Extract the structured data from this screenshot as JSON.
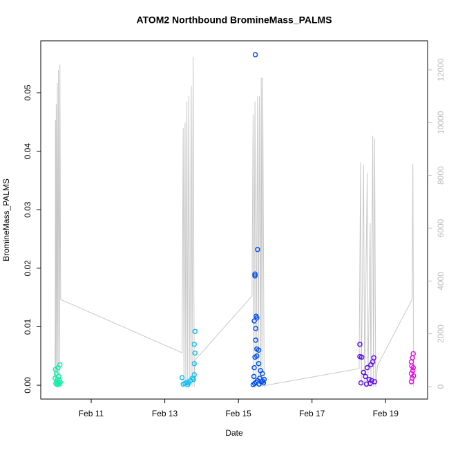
{
  "chart_data": {
    "type": "scatter",
    "title": "ATOM2 Northbound BromineMass_PALMS",
    "x_label": "Date",
    "y_label": "BromineMass_PALMS",
    "xlim": [
      9.63,
      20.14
    ],
    "xticks": [
      {
        "value": 11,
        "label": "Feb 11"
      },
      {
        "value": 13,
        "label": "Feb 13"
      },
      {
        "value": 15,
        "label": "Feb 15"
      },
      {
        "value": 17,
        "label": "Feb 17"
      },
      {
        "value": 19,
        "label": "Feb 19"
      }
    ],
    "ylim": [
      -0.00236,
      0.05887
    ],
    "yticks": [
      {
        "value": 0,
        "label": "0.00"
      },
      0.01,
      0.02,
      0.03,
      0.04,
      0.05
    ],
    "y2lim": [
      -472,
      13100
    ],
    "y2ticks": [
      0,
      2000,
      4000,
      6000,
      8000,
      10000,
      12000
    ],
    "y2_color": "#bbbbbb",
    "series": [
      {
        "type": "line",
        "axis": "y2",
        "color": "#c8c8c8",
        "x": [
          10.02,
          10.03,
          10.04,
          10.05,
          10.07,
          10.08,
          10.1,
          10.11,
          10.14,
          10.15,
          10.17,
          13.47,
          13.5,
          13.52,
          13.55,
          13.57,
          13.6,
          13.62,
          13.65,
          13.68,
          13.72,
          13.74,
          13.77,
          13.8,
          13.82,
          15.37,
          15.4,
          15.42,
          15.45,
          15.48,
          15.52,
          15.54,
          15.57,
          15.6,
          15.62,
          15.64,
          15.66,
          15.7,
          15.75,
          18.28,
          18.32,
          18.34,
          18.4,
          18.43,
          18.5,
          18.52,
          18.58,
          18.6,
          18.65,
          18.67,
          18.7,
          18.73,
          18.78,
          19.72,
          19.74,
          19.76
        ],
        "values": [
          0,
          10100,
          0,
          10700,
          0,
          11500,
          0,
          12000,
          0,
          12200,
          3300,
          1280,
          9800,
          0,
          10000,
          0,
          10800,
          0,
          11000,
          0,
          11400,
          0,
          12500,
          0,
          1000,
          3430,
          10300,
          0,
          10800,
          0,
          11000,
          0,
          11000,
          0,
          11700,
          0,
          11700,
          0,
          50,
          680,
          8500,
          0,
          8400,
          0,
          8100,
          0,
          6200,
          0,
          9500,
          0,
          9400,
          0,
          800,
          3300,
          8450,
          0
        ]
      },
      {
        "color": "#10f0a8",
        "x": [
          10.03,
          10.15,
          10.1,
          10.05,
          10.12,
          10.02,
          10.08,
          10.14,
          10.06,
          10.11,
          10.04,
          10.13,
          10.09,
          10.16
        ],
        "values": [
          0.0027,
          0.0035,
          0.003,
          0.002,
          0.0015,
          0.0012,
          0.001,
          0.0008,
          0.0006,
          0.0004,
          0.0003,
          0.0002,
          0.0001,
          0.0005
        ]
      },
      {
        "color": "#10c0f0",
        "x": [
          13.47,
          13.82,
          13.8,
          13.82,
          13.8,
          13.8,
          13.6,
          13.7,
          13.5,
          13.55,
          13.65,
          13.75,
          13.78,
          13.62
        ],
        "values": [
          0.0013,
          0.0092,
          0.007,
          0.0055,
          0.0037,
          0.0018,
          0.0005,
          0.0008,
          0.0002,
          0.0003,
          0.0004,
          0.0012,
          0.001,
          0.0001
        ]
      },
      {
        "color": "#0050f0",
        "x": [
          15.46,
          15.45,
          15.45,
          15.52,
          15.48,
          15.5,
          15.43,
          15.47,
          15.47,
          15.5,
          15.55,
          15.5,
          15.45,
          15.55,
          15.43,
          15.6,
          15.65,
          15.42,
          15.58,
          15.7,
          15.52,
          15.62,
          15.48,
          15.68,
          15.44,
          15.56,
          15.4,
          15.66
        ],
        "values": [
          0.0565,
          0.019,
          0.0187,
          0.0232,
          0.0118,
          0.0115,
          0.011,
          0.0097,
          0.0077,
          0.0062,
          0.006,
          0.005,
          0.0048,
          0.0037,
          0.003,
          0.0025,
          0.002,
          0.0015,
          0.0012,
          0.001,
          0.0008,
          0.0006,
          0.0005,
          0.0004,
          0.0003,
          0.0002,
          0.0001,
          0.0007
        ]
      },
      {
        "color": "#6010f0",
        "x": [
          18.3,
          18.3,
          18.35,
          18.68,
          18.65,
          18.6,
          18.5,
          18.4,
          18.45,
          18.55,
          18.62,
          18.7,
          18.33,
          18.58,
          18.48
        ],
        "values": [
          0.007,
          0.0049,
          0.0048,
          0.0047,
          0.004,
          0.0035,
          0.003,
          0.0022,
          0.0015,
          0.001,
          0.0008,
          0.0006,
          0.0004,
          0.0003,
          0.0002
        ]
      },
      {
        "color": "#e010e0",
        "x": [
          19.75,
          19.73,
          19.7,
          19.75,
          19.7,
          19.72,
          19.7,
          19.74,
          19.71,
          19.76
        ],
        "values": [
          0.0054,
          0.0047,
          0.004,
          0.003,
          0.002,
          0.0012,
          0.0006,
          0.0025,
          0.0033,
          0.0016
        ]
      }
    ]
  }
}
